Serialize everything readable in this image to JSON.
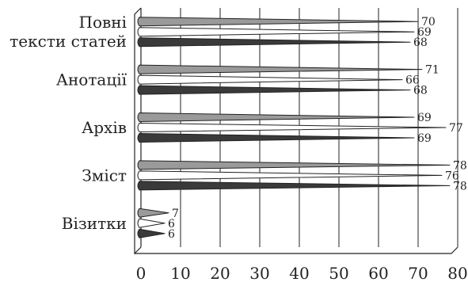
{
  "chart_data": {
    "type": "bar",
    "orientation": "horizontal",
    "bar_shape": "cone",
    "categories": [
      [
        "Повні",
        "тексти статей"
      ],
      [
        "Анотації"
      ],
      [
        "Архів"
      ],
      [
        "Зміст"
      ],
      [
        "Візитки"
      ]
    ],
    "series": [
      {
        "color": "#9a9a9a",
        "values": [
          70,
          71,
          69,
          78,
          7
        ]
      },
      {
        "color": "#ffffff",
        "values": [
          69,
          66,
          77,
          76,
          6
        ]
      },
      {
        "color": "#3a3a3a",
        "values": [
          68,
          68,
          69,
          78,
          6
        ]
      }
    ],
    "x_ticks": [
      0,
      10,
      20,
      30,
      40,
      50,
      60,
      70,
      80
    ],
    "xlim": [
      0,
      80
    ],
    "grid": "vertical",
    "xlabel": "",
    "ylabel": "",
    "title": ""
  }
}
